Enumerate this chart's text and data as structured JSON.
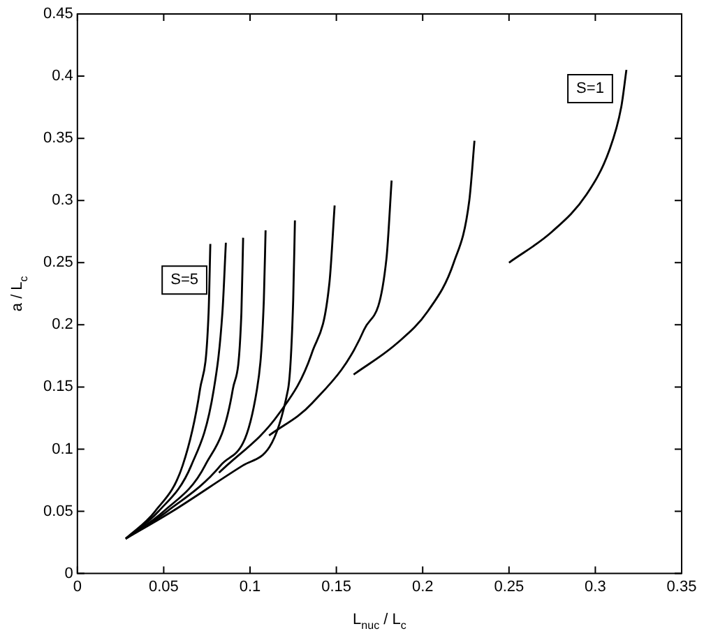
{
  "chart_data": {
    "type": "line",
    "xlabel": "L$_{nuc}$ / L$_{c}$",
    "ylabel": "a / L$_{c}$",
    "xlim": [
      0,
      0.35
    ],
    "xticks": [
      0,
      0.05,
      0.1,
      0.15,
      0.2,
      0.25,
      0.3,
      {
        "value": 0.35,
        "label": "0.35"
      }
    ],
    "ylim": [
      0,
      0.45
    ],
    "yticks": [
      0,
      0.05,
      0.1,
      0.15,
      0.2,
      0.25,
      0.3,
      0.35,
      0.4,
      0.45
    ],
    "marker": "none",
    "line_style": "solid",
    "legend": false,
    "annotations": [
      {
        "text": "S=5",
        "x": 0.062,
        "y": 0.236
      },
      {
        "text": "S=1",
        "x": 0.297,
        "y": 0.39
      }
    ],
    "series": [
      {
        "color": "#000000",
        "x": [
          0.028,
          0.045,
          0.061,
          0.071,
          0.076,
          0.077
        ],
        "values": [
          0.028,
          0.05,
          0.087,
          0.148,
          0.21,
          0.265
        ]
      },
      {
        "color": "#000000",
        "x": [
          0.028,
          0.047,
          0.066,
          0.079,
          0.084,
          0.086
        ],
        "values": [
          0.028,
          0.05,
          0.087,
          0.148,
          0.21,
          0.266
        ]
      },
      {
        "color": "#000000",
        "x": [
          0.028,
          0.05,
          0.074,
          0.09,
          0.095,
          0.096
        ],
        "values": [
          0.028,
          0.05,
          0.087,
          0.148,
          0.21,
          0.27
        ]
      },
      {
        "color": "#000000",
        "x": [
          0.028,
          0.052,
          0.083,
          0.104,
          0.108,
          0.109
        ],
        "values": [
          0.028,
          0.05,
          0.087,
          0.148,
          0.22,
          0.276
        ]
      },
      {
        "color": "#000000",
        "x": [
          0.028,
          0.055,
          0.096,
          0.122,
          0.125,
          0.126
        ],
        "values": [
          0.028,
          0.05,
          0.087,
          0.148,
          0.22,
          0.284
        ]
      },
      {
        "color": "#000000",
        "x": [
          0.082,
          0.117,
          0.136,
          0.146,
          0.149
        ],
        "values": [
          0.081,
          0.129,
          0.178,
          0.234,
          0.296
        ]
      },
      {
        "color": "#000000",
        "x": [
          0.111,
          0.136,
          0.166,
          0.179,
          0.182
        ],
        "values": [
          0.111,
          0.137,
          0.196,
          0.253,
          0.316
        ]
      },
      {
        "color": "#000000",
        "x": [
          0.16,
          0.185,
          0.203,
          0.218,
          0.227,
          0.23
        ],
        "values": [
          0.16,
          0.185,
          0.211,
          0.25,
          0.3,
          0.348
        ]
      },
      {
        "color": "#000000",
        "x": [
          0.25,
          0.275,
          0.295,
          0.308,
          0.315,
          0.318
        ],
        "values": [
          0.25,
          0.275,
          0.305,
          0.34,
          0.375,
          0.405
        ]
      }
    ]
  }
}
